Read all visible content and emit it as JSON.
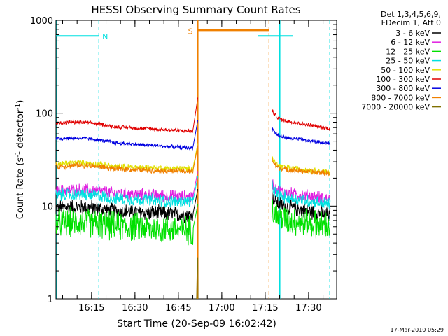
{
  "chart_data": {
    "type": "line",
    "title": "HESSI Observing Summary Count Rates",
    "xlabel": "Start Time (20-Sep-09 16:02:42)",
    "ylabel_parts": [
      "Count Rate (s",
      "-1",
      " detector",
      "-1",
      ")"
    ],
    "y_scale": "log",
    "ylim": [
      1,
      1000
    ],
    "xlim_minutes": [
      0,
      97
    ],
    "x_ticks": [
      {
        "label": "16:15",
        "t": 12.3
      },
      {
        "label": "16:30",
        "t": 27.3
      },
      {
        "label": "16:45",
        "t": 42.3
      },
      {
        "label": "17:00",
        "t": 57.3
      },
      {
        "label": "17:15",
        "t": 72.3
      },
      {
        "label": "17:30",
        "t": 87.3
      }
    ],
    "y_ticks": [
      {
        "label": "1",
        "v": 1
      },
      {
        "label": "10",
        "v": 10
      },
      {
        "label": "100",
        "v": 100
      },
      {
        "label": "1000",
        "v": 1000
      }
    ],
    "legend_header": [
      "Det 1,3,4,5,6,9,",
      "FDecim 1, Att 0"
    ],
    "legend_position": "right",
    "series": [
      {
        "name": "3 - 6 keV",
        "color": "#000000",
        "v0": 9.5,
        "v1": 8.0,
        "v2": 10.5,
        "v3": 8.0,
        "noise": 0.05
      },
      {
        "name": "6 - 12 keV",
        "color": "#e020e0",
        "v0": 14.5,
        "v1": 12.5,
        "v2": 14.5,
        "v3": 12.0,
        "noise": 0.04
      },
      {
        "name": "12 - 25 keV",
        "color": "#00e000",
        "v0": 6.5,
        "v1": 5.5,
        "v2": 7.5,
        "v3": 6.0,
        "noise": 0.09
      },
      {
        "name": "25 - 50 keV",
        "color": "#00e0e0",
        "v0": 13.0,
        "v1": 11.0,
        "v2": 13.0,
        "v3": 10.5,
        "noise": 0.04
      },
      {
        "name": "50 - 100 keV",
        "color": "#e0e000",
        "v0": 28.0,
        "v1": 25.0,
        "v2": 27.0,
        "v3": 23.0,
        "noise": 0.02
      },
      {
        "name": "100 - 300 keV",
        "color": "#e00000",
        "v0": 78.0,
        "v1": 64.0,
        "v2": 88.0,
        "v3": 68.0,
        "noise": 0.012
      },
      {
        "name": "300 - 800 keV",
        "color": "#0000e0",
        "v0": 53.0,
        "v1": 42.0,
        "v2": 57.0,
        "v3": 47.0,
        "noise": 0.012
      },
      {
        "name": "800 - 7000 keV",
        "color": "#f08000",
        "v0": 26.5,
        "v1": 23.5,
        "v2": 25.5,
        "v3": 22.5,
        "noise": 0.018
      },
      {
        "name": "7000 - 20000 keV",
        "color": "#807000",
        "v0": null,
        "v1": null,
        "v2": null,
        "v3": null,
        "noise": 0
      }
    ],
    "flags": {
      "night_label": "N",
      "saa_label": "S",
      "night_color": "#00e0e0",
      "saa_color": "#f08000",
      "night_level": 680,
      "saa_level": 780,
      "night_intervals": [
        [
          0,
          14.8
        ],
        [
          69.7,
          82.0
        ]
      ],
      "night_dashed_t": [
        14.8,
        94.6
      ],
      "night_solid_t": [
        77.3
      ],
      "saa_intervals": [
        [
          49.0,
          73.6
        ]
      ],
      "saa_dashed_t": [
        73.6
      ]
    },
    "timestamp": "17-Mar-2010 05:29"
  }
}
